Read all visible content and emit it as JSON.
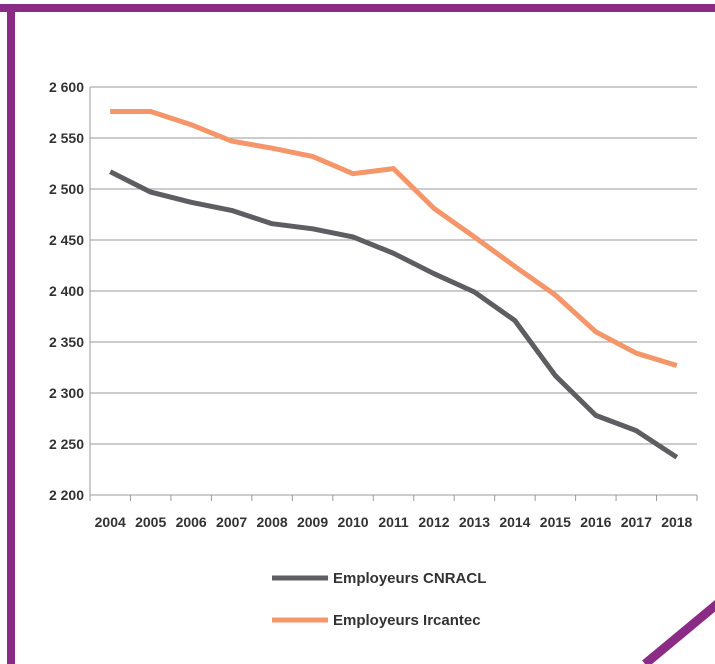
{
  "colors": {
    "frame": "#8a2b86",
    "cnracl": "#5d5d62",
    "ircantec": "#f4956a",
    "grid": "#9a9a9a",
    "text": "#333333"
  },
  "chart_data": {
    "type": "line",
    "title": "",
    "xlabel": "",
    "ylabel": "",
    "x": [
      "2004",
      "2005",
      "2006",
      "2007",
      "2008",
      "2009",
      "2010",
      "2011",
      "2012",
      "2013",
      "2014",
      "2015",
      "2016",
      "2017",
      "2018"
    ],
    "ylim": [
      2200,
      2600
    ],
    "yticks": [
      2200,
      2250,
      2300,
      2350,
      2400,
      2450,
      2500,
      2550,
      2600
    ],
    "ytick_labels": [
      "2 200",
      "2 250",
      "2 300",
      "2 350",
      "2 400",
      "2 450",
      "2 500",
      "2 550",
      "2 600"
    ],
    "grid": true,
    "legend_position": "bottom",
    "series": [
      {
        "name": "Employeurs CNRACL",
        "color": "#5d5d62",
        "values": [
          2517,
          2497,
          2487,
          2479,
          2466,
          2461,
          2453,
          2437,
          2417,
          2399,
          2371,
          2317,
          2278,
          2263,
          2237
        ]
      },
      {
        "name": "Employeurs Ircantec",
        "color": "#f4956a",
        "values": [
          2576,
          2576,
          2563,
          2547,
          2540,
          2532,
          2515,
          2520,
          2481,
          2453,
          2424,
          2396,
          2360,
          2339,
          2327
        ]
      }
    ]
  }
}
